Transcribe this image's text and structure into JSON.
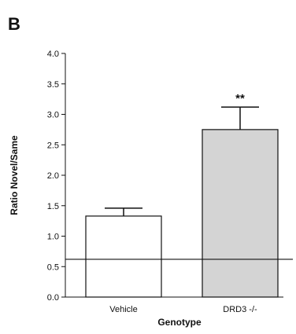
{
  "panel_label": "B",
  "chart_data": {
    "type": "bar",
    "categories": [
      "Vehicle",
      "DRD3 -/-"
    ],
    "values": [
      1.33,
      2.75
    ],
    "errors": [
      0.13,
      0.37
    ],
    "bar_colors": [
      "#ffffff",
      "#d4d4d4"
    ],
    "annotations": [
      "",
      "**"
    ],
    "xlabel": "Genotype",
    "ylabel": "Ratio Novel/Same",
    "ylim": [
      0,
      4
    ],
    "yticks": [
      "0.0",
      "0.5",
      "1.0",
      "1.5",
      "2.0",
      "2.5",
      "3.0",
      "3.5",
      "4.0"
    ],
    "reference_line": 0.62,
    "grid": false
  }
}
